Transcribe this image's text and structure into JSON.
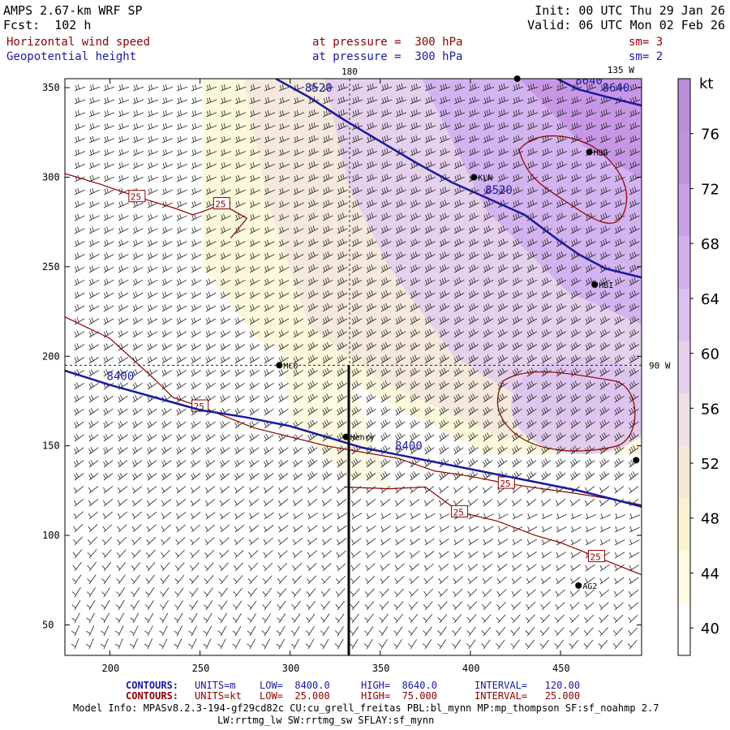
{
  "header": {
    "model": "AMPS 2.67-km WRF SP",
    "fcst": "Fcst:  102 h",
    "init": "Init: 00 UTC Thu 29 Jan 26",
    "valid": "Valid: 06 UTC Mon 02 Feb 26",
    "field1": {
      "name": "Horizontal wind speed",
      "level": "at pressure =  300 hPa",
      "sm": "sm= 3"
    },
    "field2": {
      "name": "Geopotential height",
      "level": "at pressure =  300 hPa",
      "sm": "sm= 2"
    }
  },
  "footer": {
    "c1_label": "CONTOURS:",
    "c1_units": "UNITS=m",
    "c1_low": "LOW=  8400.0",
    "c1_high": "HIGH=  8640.0",
    "c1_int": "INTERVAL=   120.00",
    "c2_label": "CONTOURS:",
    "c2_units": "UNITS=kt",
    "c2_low": "LOW=  25.000",
    "c2_high": "HIGH=  75.000",
    "c2_int": "INTERVAL=   25.000",
    "model_info": "Model Info: MPASv8.2.3-194-gf29cd82c CU:cu_grell_freitas PBL:bl_mynn MP:mp_thompson SF:sf_noahmp 2.7",
    "model_info2": "LW:rrtmg_lw SW:rrtmg_sw SFLAY:sf_mynn"
  },
  "colors": {
    "height_contour": "#1a1aa0",
    "speed_contour": "#8b0000",
    "shade_low": "#fdfbe0",
    "shade_high": "#c68be0"
  },
  "chart_data": {
    "type": "contour",
    "title": "Horizontal wind speed (shaded, kt) and Geopotential height (m) at 300 hPa",
    "xlim": [
      175,
      495
    ],
    "ylim": [
      33,
      355
    ],
    "x_ticks": [
      200,
      250,
      300,
      350,
      400,
      450
    ],
    "y_ticks": [
      50,
      100,
      150,
      200,
      250,
      300,
      350
    ],
    "colorbar": {
      "unit": "kt",
      "ticks": [
        40,
        44,
        48,
        52,
        56,
        60,
        64,
        68,
        72,
        76
      ],
      "range": [
        38,
        80
      ],
      "colors": [
        "#ffffff",
        "#fdfbe0",
        "#fbf3cf",
        "#f5e9d6",
        "#efdfe6",
        "#e6d0ee",
        "#dcc0f1",
        "#d2b0ee",
        "#c9a0e6",
        "#c292de",
        "#bd8bd8"
      ]
    },
    "meridians": [
      {
        "label": "180",
        "x": 333
      },
      {
        "label": "135 W",
        "x": 485
      },
      {
        "label": "90 W",
        "y": 195
      }
    ],
    "stations": [
      {
        "name": "MCO",
        "x": 294,
        "y": 195
      },
      {
        "name": "KLN",
        "x": 402,
        "y": 300
      },
      {
        "name": "HDG",
        "x": 466,
        "y": 314
      },
      {
        "name": "HBI",
        "x": 469,
        "y": 240
      },
      {
        "name": "Henry",
        "x": 331,
        "y": 155
      },
      {
        "name": "AG2",
        "x": 460,
        "y": 72
      },
      {
        "name": "",
        "x": 492,
        "y": 142
      },
      {
        "name": "",
        "x": 426,
        "y": 355
      }
    ],
    "height_contours": [
      {
        "label": "8400",
        "level": 8400,
        "points": [
          [
            175,
            192
          ],
          [
            200,
            184
          ],
          [
            225,
            177
          ],
          [
            250,
            170
          ],
          [
            275,
            166
          ],
          [
            300,
            161
          ],
          [
            320,
            155
          ],
          [
            340,
            149
          ],
          [
            360,
            145
          ],
          [
            380,
            141
          ],
          [
            400,
            137
          ],
          [
            420,
            133
          ],
          [
            440,
            129
          ],
          [
            460,
            125
          ],
          [
            480,
            120
          ],
          [
            495,
            116
          ]
        ]
      },
      {
        "label": "8520",
        "level": 8520,
        "points": [
          [
            292,
            355
          ],
          [
            310,
            345
          ],
          [
            330,
            332
          ],
          [
            350,
            320
          ],
          [
            370,
            308
          ],
          [
            390,
            297
          ],
          [
            410,
            288
          ],
          [
            430,
            279
          ],
          [
            450,
            264
          ],
          [
            460,
            257
          ],
          [
            475,
            249
          ],
          [
            495,
            244
          ]
        ]
      },
      {
        "label": "8640",
        "level": 8640,
        "points": [
          [
            448,
            355
          ],
          [
            460,
            349
          ],
          [
            475,
            345
          ],
          [
            495,
            340
          ]
        ]
      }
    ],
    "speed_contours": [
      {
        "label": "25",
        "level": 25,
        "points": [
          [
            175,
            302
          ],
          [
            195,
            296
          ],
          [
            215,
            289
          ],
          [
            235,
            283
          ],
          [
            246,
            279
          ],
          [
            252,
            281
          ],
          [
            262,
            285
          ],
          [
            276,
            277
          ],
          [
            267,
            266
          ]
        ]
      },
      {
        "label": "25",
        "level": 25,
        "points": [
          [
            175,
            222
          ],
          [
            200,
            210
          ],
          [
            225,
            187
          ],
          [
            235,
            177
          ],
          [
            250,
            172
          ],
          [
            280,
            160
          ],
          [
            320,
            150
          ],
          [
            360,
            143
          ],
          [
            380,
            136
          ],
          [
            400,
            133
          ],
          [
            420,
            129
          ],
          [
            440,
            126
          ],
          [
            455,
            124
          ],
          [
            480,
            120
          ],
          [
            495,
            117
          ]
        ]
      },
      {
        "label": "25",
        "level": 25,
        "points": [
          [
            330,
            127
          ],
          [
            355,
            126
          ],
          [
            375,
            127
          ],
          [
            394,
            113
          ],
          [
            415,
            108
          ],
          [
            436,
            100
          ],
          [
            450,
            96
          ],
          [
            470,
            88
          ],
          [
            490,
            80
          ],
          [
            495,
            78
          ]
        ]
      }
    ],
    "wind_barbs": "northwesterly-to-westerly flow, 25-65 kt"
  }
}
